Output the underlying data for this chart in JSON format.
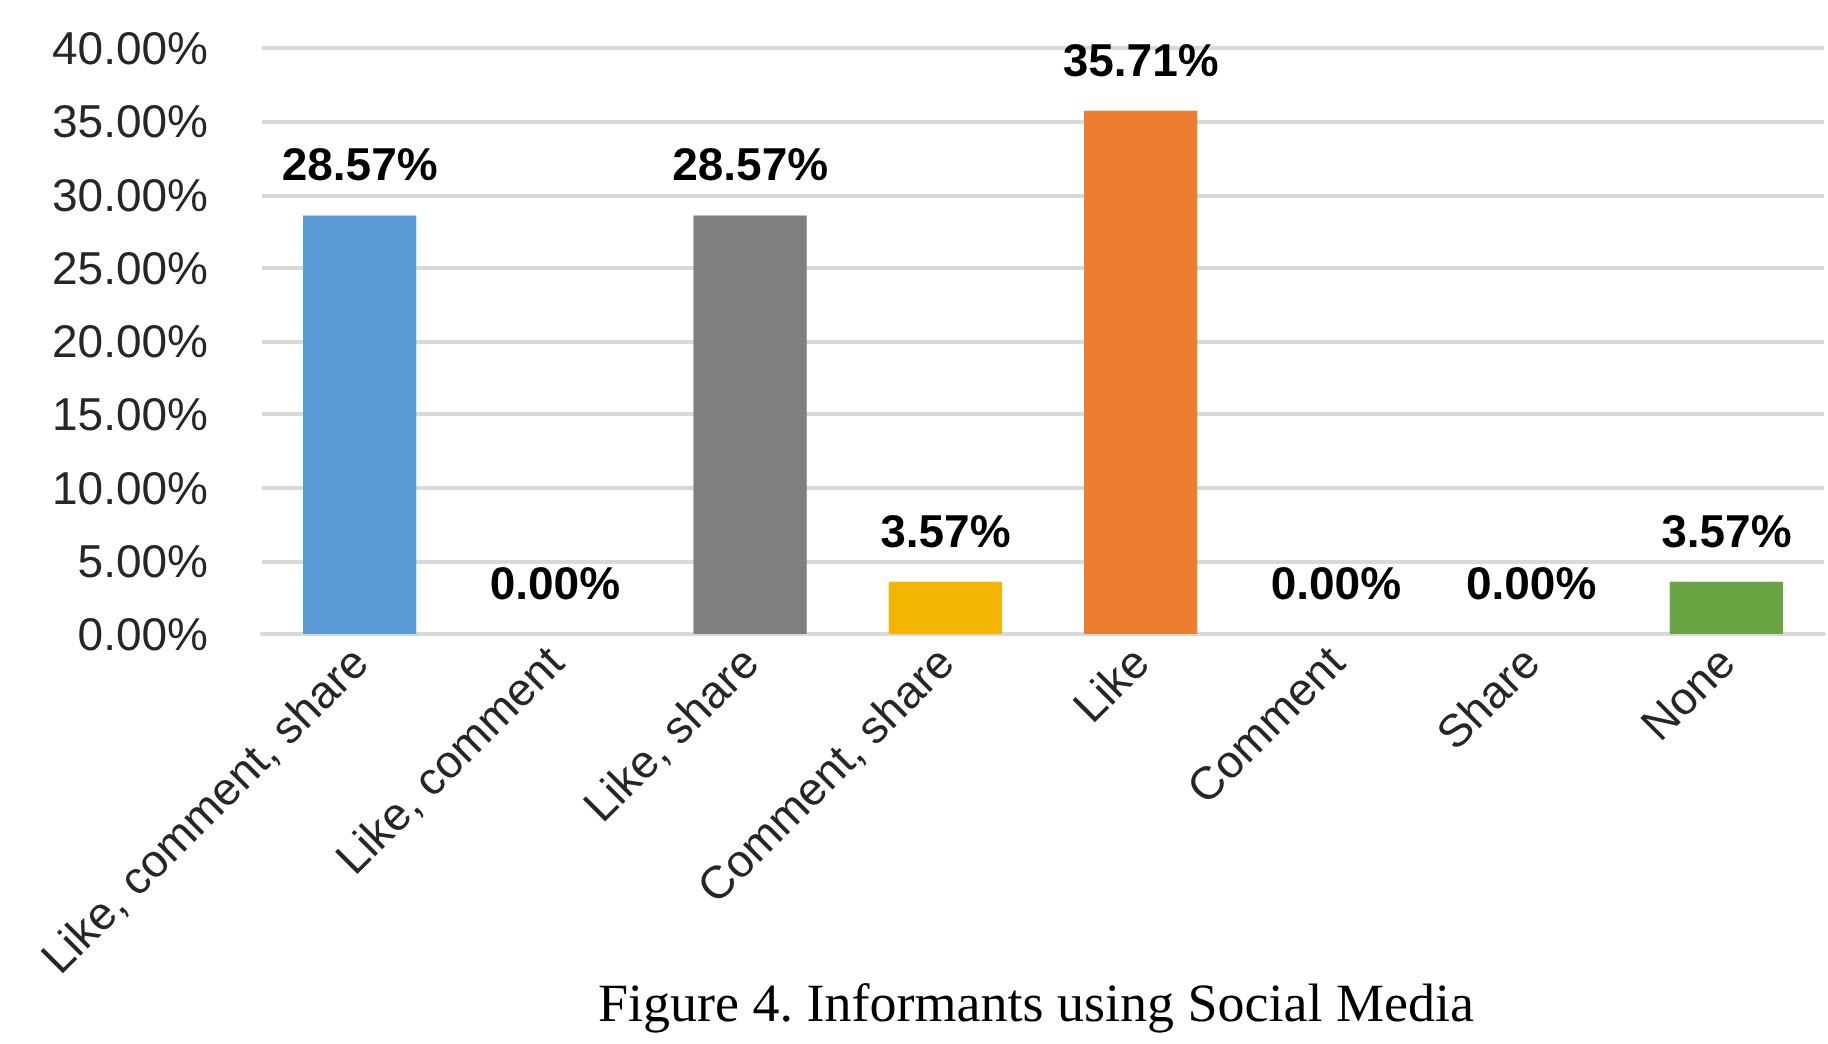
{
  "chart_data": {
    "type": "bar",
    "title": "Figure 4. Informants using Social Media",
    "categories": [
      "Like, comment, share",
      "Like, comment",
      "Like, share",
      "Comment, share",
      "Like",
      "Comment",
      "Share",
      "None"
    ],
    "values": [
      28.57,
      0,
      28.57,
      3.57,
      35.71,
      0,
      0,
      3.57
    ],
    "value_labels": [
      "28.57%",
      "0.00%",
      "28.57%",
      "3.57%",
      "35.71%",
      "0.00%",
      "0.00%",
      "3.57%"
    ],
    "colors": [
      "#5b9bd5",
      null,
      "#7f7f7f",
      "#f2b600",
      "#ed7d31",
      null,
      null,
      "#6aa543"
    ],
    "ylim": [
      0,
      40
    ],
    "yticks": [
      {
        "value": 0,
        "label": "0.00%"
      },
      {
        "value": 5,
        "label": "5.00%"
      },
      {
        "value": 10,
        "label": "10.00%"
      },
      {
        "value": 15,
        "label": "15.00%"
      },
      {
        "value": 20,
        "label": "20.00%"
      },
      {
        "value": 25,
        "label": "25.00%"
      },
      {
        "value": 30,
        "label": "30.00%"
      },
      {
        "value": 35,
        "label": "35.00%"
      },
      {
        "value": 40,
        "label": "40.00%"
      }
    ],
    "grid": "y"
  }
}
